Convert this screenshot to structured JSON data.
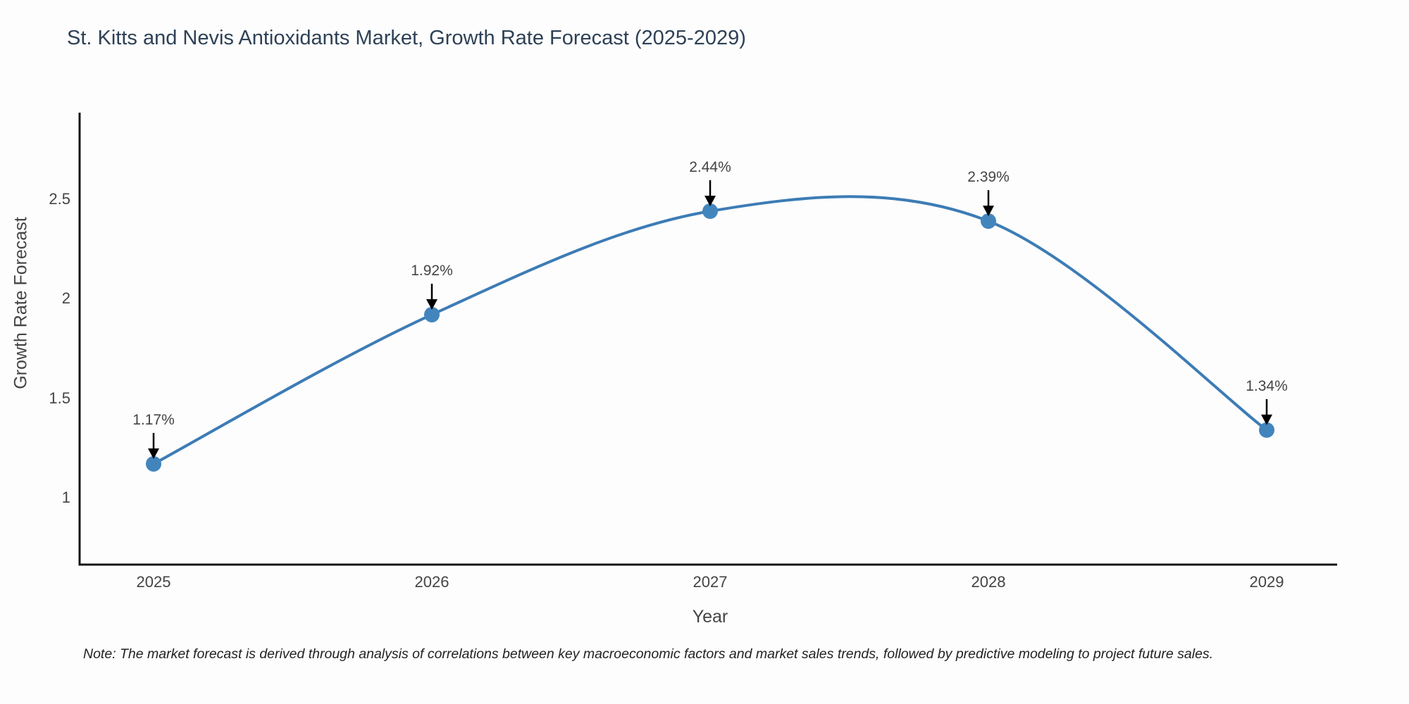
{
  "title": "St. Kitts and Nevis Antioxidants Market, Growth Rate Forecast (2025-2029)",
  "note": "Note: The market forecast is derived through analysis of correlations between key macroeconomic factors and market sales trends, followed by predictive modeling to project future sales.",
  "chart_data": {
    "type": "line",
    "title": "St. Kitts and Nevis Antioxidants Market, Growth Rate Forecast (2025-2029)",
    "x": [
      "2025",
      "2026",
      "2027",
      "2028",
      "2029"
    ],
    "values": [
      1.17,
      1.92,
      2.44,
      2.39,
      1.34
    ],
    "point_labels": [
      "1.17%",
      "1.92%",
      "2.44%",
      "2.39%",
      "1.34%"
    ],
    "xlabel": "Year",
    "ylabel": "Growth Rate Forecast",
    "yticks": [
      "1",
      "1.5",
      "2",
      "2.5"
    ],
    "ytick_values": [
      1,
      1.5,
      2,
      2.5
    ],
    "ylim": [
      0.66,
      2.94
    ],
    "line_shape": "spline",
    "grid": false,
    "legend": "none",
    "colors": {
      "line": "#3d7cb5",
      "marker": "#4285bd",
      "axis": "#151515",
      "annotation_arrow": "#000000",
      "annotation_text": "#444444",
      "title_text": "#2e4156",
      "tick_text": "#444444",
      "background": "#fdfdfd"
    }
  }
}
